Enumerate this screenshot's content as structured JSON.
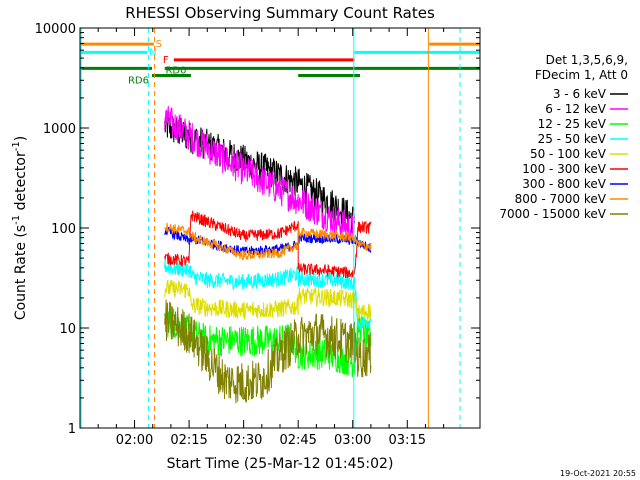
{
  "chart_data": {
    "type": "line",
    "title": "RHESSI Observing Summary Count Rates",
    "xlabel": "Start Time (25-Mar-12 01:45:02)",
    "ylabel_main": "Count Rate (s",
    "ylabel_sup1": "-1",
    "ylabel_mid": " detector",
    "ylabel_sup2": "-1",
    "ylabel_end": ")",
    "y_scale": "log",
    "ylim": [
      1,
      10000
    ],
    "xlim_minutes": [
      0,
      110
    ],
    "x_ticks": [
      {
        "label": "02:00",
        "minutes": 15
      },
      {
        "label": "02:15",
        "minutes": 30
      },
      {
        "label": "02:30",
        "minutes": 45
      },
      {
        "label": "02:45",
        "minutes": 60
      },
      {
        "label": "03:00",
        "minutes": 75
      },
      {
        "label": "03:15",
        "minutes": 90
      }
    ],
    "y_ticks": [
      {
        "label": "1",
        "value": 1
      },
      {
        "label": "10",
        "value": 10
      },
      {
        "label": "100",
        "value": 100
      },
      {
        "label": "1000",
        "value": 1000
      },
      {
        "label": "10000",
        "value": 10000
      }
    ],
    "legend": {
      "placement": "right",
      "header1": "Det 1,3,5,6,9,",
      "header2": "FDecim 1, Att 0"
    },
    "series": [
      {
        "name": "3 - 6 keV",
        "color": "#000000",
        "noise": 0.16,
        "points": [
          [
            23.3,
            1050
          ],
          [
            30,
            820
          ],
          [
            40,
            560
          ],
          [
            50,
            400
          ],
          [
            60,
            280
          ],
          [
            70,
            170
          ],
          [
            75.5,
            120
          ]
        ]
      },
      {
        "name": "6 - 12 keV",
        "color": "#ff00ff",
        "noise": 0.16,
        "points": [
          [
            23.3,
            1250
          ],
          [
            30,
            850
          ],
          [
            40,
            480
          ],
          [
            50,
            300
          ],
          [
            60,
            190
          ],
          [
            70,
            120
          ],
          [
            75.5,
            95
          ]
        ]
      },
      {
        "name": "12 - 25 keV",
        "color": "#00ff00",
        "noise": 0.16,
        "points": [
          [
            23.3,
            11
          ],
          [
            25,
            12
          ],
          [
            30,
            9
          ],
          [
            35,
            7.5
          ],
          [
            45,
            7.5
          ],
          [
            55,
            7.5
          ],
          [
            58,
            8
          ],
          [
            60,
            5.5
          ],
          [
            68,
            5.5
          ],
          [
            72,
            5
          ],
          [
            75.5,
            4.5
          ],
          [
            76.5,
            11
          ],
          [
            80,
            7.5
          ]
        ]
      },
      {
        "name": "25 - 50 keV",
        "color": "#00ffff",
        "noise": 0.08,
        "points": [
          [
            23.3,
            42
          ],
          [
            25,
            40
          ],
          [
            30.5,
            38
          ],
          [
            30.5,
            33
          ],
          [
            35,
            30
          ],
          [
            45,
            29
          ],
          [
            55,
            31
          ],
          [
            60,
            35
          ],
          [
            60,
            31
          ],
          [
            70,
            30
          ],
          [
            75.5,
            28
          ],
          [
            76.5,
            11
          ],
          [
            80,
            12
          ]
        ]
      },
      {
        "name": "50 - 100 keV",
        "color": "#dddd00",
        "noise": 0.09,
        "points": [
          [
            23.3,
            25
          ],
          [
            30,
            24
          ],
          [
            30.5,
            17
          ],
          [
            35,
            16
          ],
          [
            45,
            15
          ],
          [
            55,
            15.5
          ],
          [
            60,
            16.5
          ],
          [
            60,
            21
          ],
          [
            70,
            20
          ],
          [
            75.5,
            19
          ],
          [
            76.5,
            14
          ],
          [
            80,
            15
          ]
        ]
      },
      {
        "name": "100 - 300 keV",
        "color": "#ff0000",
        "noise": 0.06,
        "points": [
          [
            23.3,
            50
          ],
          [
            30,
            46
          ],
          [
            30.5,
            135
          ],
          [
            35,
            115
          ],
          [
            45,
            83
          ],
          [
            55,
            88
          ],
          [
            60,
            108
          ],
          [
            60,
            39
          ],
          [
            70,
            37
          ],
          [
            75.5,
            35
          ],
          [
            76.5,
            102
          ],
          [
            80,
            100
          ]
        ]
      },
      {
        "name": "300 - 800 keV",
        "color": "#0000ff",
        "noise": 0.05,
        "points": [
          [
            23.3,
            95
          ],
          [
            30,
            75
          ],
          [
            30.5,
            78
          ],
          [
            35,
            72
          ],
          [
            45,
            58
          ],
          [
            55,
            62
          ],
          [
            60,
            68
          ],
          [
            60,
            80
          ],
          [
            70,
            78
          ],
          [
            75.5,
            75
          ],
          [
            76.5,
            72
          ],
          [
            80,
            62
          ]
        ]
      },
      {
        "name": "800 - 7000 keV",
        "color": "#ff8800",
        "noise": 0.05,
        "points": [
          [
            23.3,
            103
          ],
          [
            30,
            92
          ],
          [
            30.5,
            83
          ],
          [
            35,
            72
          ],
          [
            45,
            53
          ],
          [
            55,
            56
          ],
          [
            60,
            68
          ],
          [
            60,
            91
          ],
          [
            70,
            84
          ],
          [
            75.5,
            80
          ],
          [
            76.5,
            68
          ],
          [
            80,
            65
          ]
        ]
      },
      {
        "name": "7000 - 15000 keV",
        "color": "#808000",
        "noise": 0.22,
        "points": [
          [
            23.3,
            12
          ],
          [
            30,
            9
          ],
          [
            35,
            5
          ],
          [
            40,
            3
          ],
          [
            45,
            2.8
          ],
          [
            50,
            3
          ],
          [
            55,
            5.5
          ],
          [
            60,
            8
          ],
          [
            65,
            9
          ],
          [
            70,
            8
          ],
          [
            75.5,
            7
          ],
          [
            76.5,
            5
          ],
          [
            80,
            5.5
          ]
        ]
      }
    ],
    "flag_bars": [
      {
        "label": "S",
        "color": "#ff8800",
        "value": 6900,
        "segments": [
          [
            0,
            20.3
          ],
          [
            96,
            110
          ]
        ]
      },
      {
        "label": "N",
        "color": "#00ffff",
        "value": 5700,
        "segments": [
          [
            0,
            18.5
          ],
          [
            75.5,
            110
          ]
        ]
      },
      {
        "label": "F",
        "color": "#ff0000",
        "value": 4800,
        "segments": [
          [
            25.8,
            75.5
          ]
        ]
      },
      {
        "label": "RD0",
        "color": "#008000",
        "value": 3950,
        "segments": [
          [
            0,
            19.8
          ],
          [
            23.3,
            110
          ]
        ]
      },
      {
        "label": "RD6",
        "color": "#008000",
        "value": 3350,
        "segments": [
          [
            19.8,
            30.5
          ],
          [
            60,
            77
          ]
        ]
      }
    ],
    "vertical_markers": [
      {
        "minutes": 0.3,
        "color": "#00ffff",
        "dashed": false
      },
      {
        "minutes": 18.8,
        "color": "#00ffff",
        "dashed": true
      },
      {
        "minutes": 20.5,
        "color": "#ff8800",
        "dashed": true
      },
      {
        "minutes": 75.3,
        "color": "#00ffff",
        "dashed": false
      },
      {
        "minutes": 95.8,
        "color": "#ff8800",
        "dashed": false
      },
      {
        "minutes": 104.5,
        "color": "#00ffff",
        "dashed": true
      }
    ],
    "grid": false
  },
  "footer": {
    "timestamp": "19-Oct-2021 20:55"
  }
}
